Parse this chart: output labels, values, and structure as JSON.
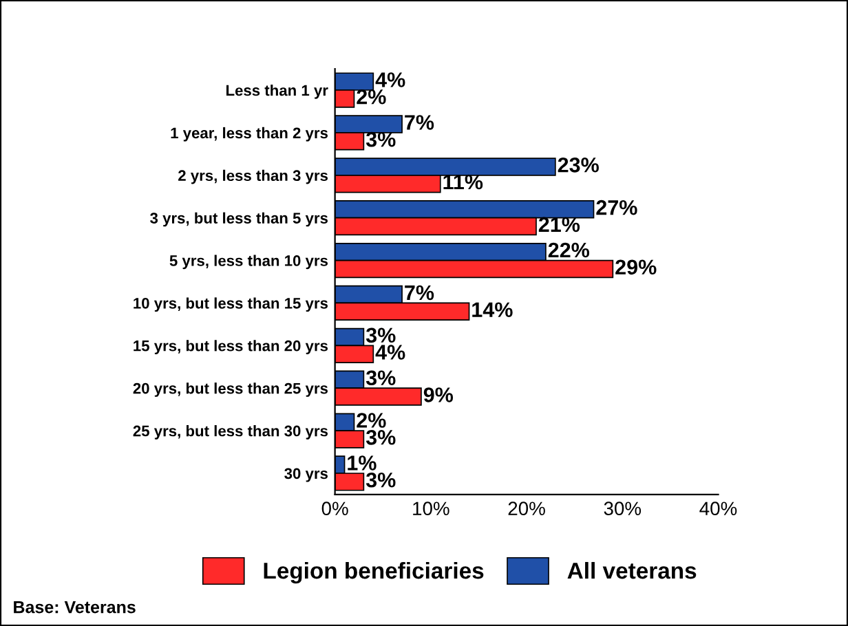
{
  "chart_data": {
    "type": "bar",
    "orientation": "horizontal",
    "categories": [
      "Less than 1 yr",
      "1 year, less than 2 yrs",
      "2 yrs, less than 3 yrs",
      "3 yrs, but less than 5 yrs",
      "5 yrs, less than 10 yrs",
      "10 yrs, but less than 15 yrs",
      "15 yrs, but less than 20 yrs",
      "20 yrs, but less than 25 yrs",
      "25 yrs, but less than 30 yrs",
      "30 yrs"
    ],
    "series": [
      {
        "name": "All veterans",
        "color": "#2050a8",
        "values": [
          4,
          7,
          23,
          27,
          22,
          7,
          3,
          3,
          2,
          1
        ],
        "value_labels": [
          "4%",
          "7%",
          "23%",
          "27%",
          "22%",
          "7%",
          "3%",
          "3%",
          "2%",
          "1%"
        ]
      },
      {
        "name": "Legion beneficiaries",
        "color": "#ff2a2a",
        "values": [
          2,
          3,
          11,
          21,
          29,
          14,
          4,
          9,
          3,
          3
        ],
        "value_labels": [
          "2%",
          "3%",
          "11%",
          "21%",
          "29%",
          "14%",
          "4%",
          "9%",
          "3%",
          "3%"
        ]
      }
    ],
    "xlim": [
      0,
      40
    ],
    "xticks": [
      {
        "value": 0,
        "label": "0%"
      },
      {
        "value": 10,
        "label": "10%"
      },
      {
        "value": 20,
        "label": "20%"
      },
      {
        "value": 30,
        "label": "30%"
      },
      {
        "value": 40,
        "label": "40%"
      }
    ],
    "legend": "bottom",
    "grid": false,
    "annotations": [
      "Base: Veterans"
    ]
  }
}
